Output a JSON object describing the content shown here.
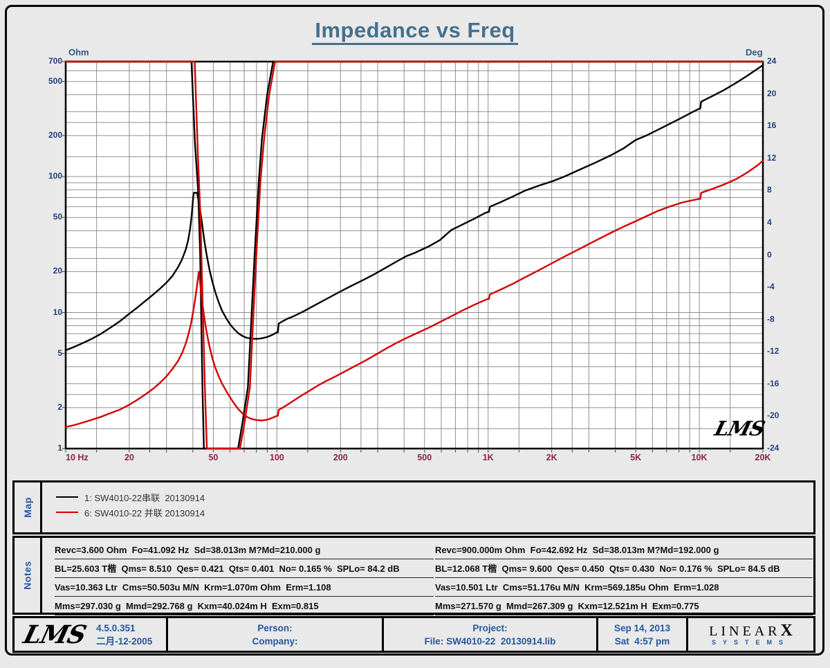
{
  "title": "Impedance vs Freq",
  "logos": {
    "lms": "LMS",
    "brand_line1": "LINEAR",
    "brand_x": "X",
    "brand_line2": "SYSTEMS"
  },
  "chart_data": {
    "type": "line",
    "title": "Impedance vs Freq",
    "grid": true,
    "x_axis": {
      "scale": "log",
      "min": 10,
      "max": 20000,
      "unit": "Hz",
      "ticks": [
        10,
        20,
        50,
        100,
        200,
        500,
        1000,
        2000,
        5000,
        10000,
        20000
      ],
      "tick_labels": [
        "10 Hz",
        "20",
        "50",
        "100",
        "200",
        "500",
        "1K",
        "2K",
        "5K",
        "10K",
        "20K"
      ]
    },
    "y_left": {
      "scale": "log",
      "min": 1,
      "max": 700,
      "unit": "Ohm",
      "tick_values": [
        700,
        500,
        200,
        100,
        50,
        20,
        10,
        5,
        2,
        1
      ]
    },
    "y_right": {
      "scale": "linear",
      "min": -24,
      "max": 24,
      "unit": "Deg",
      "tick_values": [
        24,
        20,
        16,
        12,
        8,
        4,
        0,
        -4,
        -8,
        -12,
        -16,
        -20,
        -24
      ]
    },
    "series": [
      {
        "name": "1: SW4010-22串联  20130914 phase",
        "axis": "right",
        "color": "#000000",
        "kind": "phase",
        "points": [
          [
            10,
            40
          ],
          [
            37,
            40
          ],
          [
            39.4,
            24
          ],
          [
            40.9,
            14
          ],
          [
            42.4,
            7.8
          ],
          [
            43.3,
            0
          ],
          [
            44.4,
            -16.4
          ],
          [
            45.1,
            -24
          ],
          [
            46,
            -40
          ],
          [
            63.5,
            -40
          ],
          [
            65.5,
            -24
          ],
          [
            68.5,
            -21
          ],
          [
            72.9,
            -16.4
          ],
          [
            78.3,
            -0.3
          ],
          [
            82,
            9
          ],
          [
            85,
            14.5
          ],
          [
            90,
            20
          ],
          [
            96,
            24
          ],
          [
            99,
            40
          ],
          [
            20000,
            40
          ]
        ]
      },
      {
        "name": "1: SW4010-22串联  20130914",
        "axis": "left",
        "color": "#000000",
        "kind": "impedance",
        "points": [
          [
            10,
            5.28
          ],
          [
            11,
            5.6
          ],
          [
            12,
            5.95
          ],
          [
            13,
            6.3
          ],
          [
            14.5,
            6.9
          ],
          [
            16,
            7.6
          ],
          [
            18,
            8.6
          ],
          [
            20,
            9.8
          ],
          [
            22,
            11
          ],
          [
            24,
            12.3
          ],
          [
            26,
            13.6
          ],
          [
            28,
            15
          ],
          [
            30,
            16.6
          ],
          [
            32,
            18.6
          ],
          [
            34,
            21.5
          ],
          [
            35.5,
            24.5
          ],
          [
            37,
            29
          ],
          [
            38,
            34
          ],
          [
            38.8,
            41
          ],
          [
            39.4,
            50
          ],
          [
            39.8,
            60
          ],
          [
            40.1,
            70
          ],
          [
            40.4,
            76
          ],
          [
            41.9,
            76
          ],
          [
            42.6,
            66
          ],
          [
            43.4,
            55
          ],
          [
            44.3,
            44
          ],
          [
            45.3,
            34
          ],
          [
            46.5,
            26.5
          ],
          [
            48,
            20.5
          ],
          [
            49.5,
            16.8
          ],
          [
            51,
            14.2
          ],
          [
            53,
            11.9
          ],
          [
            55,
            10.3
          ],
          [
            57.5,
            9.1
          ],
          [
            60,
            8.2
          ],
          [
            63,
            7.5
          ],
          [
            66,
            7
          ],
          [
            69,
            6.7
          ],
          [
            72,
            6.52
          ],
          [
            76,
            6.43
          ],
          [
            80,
            6.4
          ],
          [
            84,
            6.45
          ],
          [
            88,
            6.55
          ],
          [
            92,
            6.7
          ],
          [
            96,
            6.9
          ],
          [
            100,
            7.15
          ],
          [
            101,
            7.15
          ],
          [
            102,
            8.3
          ],
          [
            106,
            8.6
          ],
          [
            112,
            9
          ],
          [
            120,
            9.4
          ],
          [
            132,
            10.1
          ],
          [
            146,
            11
          ],
          [
            162,
            12
          ],
          [
            180,
            13.1
          ],
          [
            200,
            14.3
          ],
          [
            225,
            15.7
          ],
          [
            255,
            17.3
          ],
          [
            290,
            19.2
          ],
          [
            330,
            21.5
          ],
          [
            370,
            23.8
          ],
          [
            410,
            26
          ],
          [
            450,
            27.5
          ],
          [
            520,
            30.5
          ],
          [
            590,
            34
          ],
          [
            670,
            40.5
          ],
          [
            760,
            44.5
          ],
          [
            860,
            49
          ],
          [
            970,
            54
          ],
          [
            1000,
            55
          ],
          [
            1010,
            55
          ],
          [
            1020,
            60
          ],
          [
            1150,
            65
          ],
          [
            1300,
            71
          ],
          [
            1500,
            79
          ],
          [
            1750,
            86
          ],
          [
            2000,
            92
          ],
          [
            2300,
            100
          ],
          [
            2700,
            112
          ],
          [
            3200,
            126
          ],
          [
            3800,
            143
          ],
          [
            4400,
            162
          ],
          [
            5000,
            186
          ],
          [
            5600,
            200
          ],
          [
            6300,
            219
          ],
          [
            7200,
            243
          ],
          [
            8300,
            272
          ],
          [
            9200,
            296
          ],
          [
            10000,
            316
          ],
          [
            10100,
            316
          ],
          [
            10200,
            355
          ],
          [
            11500,
            390
          ],
          [
            13000,
            430
          ],
          [
            15000,
            490
          ],
          [
            17000,
            555
          ],
          [
            19000,
            625
          ],
          [
            20000,
            660
          ]
        ]
      },
      {
        "name": "6: SW4010-22 并联 20130914 phase",
        "axis": "right",
        "color": "#d40000",
        "kind": "phase",
        "points": [
          [
            10,
            40
          ],
          [
            38.3,
            40
          ],
          [
            40.8,
            24
          ],
          [
            42.3,
            12
          ],
          [
            43.4,
            5
          ],
          [
            44.6,
            -7
          ],
          [
            45.6,
            -16.4
          ],
          [
            46.6,
            -24
          ],
          [
            47.6,
            -40
          ],
          [
            64.8,
            -40
          ],
          [
            66.8,
            -24
          ],
          [
            70,
            -21
          ],
          [
            74.5,
            -16.4
          ],
          [
            79.8,
            -0.3
          ],
          [
            83.5,
            9
          ],
          [
            87,
            14.5
          ],
          [
            92,
            20
          ],
          [
            98,
            24
          ],
          [
            101,
            40
          ],
          [
            20000,
            40
          ]
        ]
      },
      {
        "name": "6: SW4010-22 并联 20130914",
        "axis": "left",
        "color": "#d40000",
        "kind": "impedance",
        "points": [
          [
            10,
            1.44
          ],
          [
            11,
            1.49
          ],
          [
            12,
            1.55
          ],
          [
            13,
            1.61
          ],
          [
            14.5,
            1.7
          ],
          [
            16,
            1.8
          ],
          [
            18,
            1.93
          ],
          [
            20,
            2.1
          ],
          [
            22,
            2.3
          ],
          [
            24,
            2.52
          ],
          [
            26,
            2.76
          ],
          [
            28,
            3.05
          ],
          [
            30,
            3.4
          ],
          [
            32,
            3.85
          ],
          [
            34,
            4.4
          ],
          [
            35.5,
            5
          ],
          [
            37,
            5.9
          ],
          [
            38,
            6.8
          ],
          [
            39,
            8
          ],
          [
            40,
            9.8
          ],
          [
            41,
            12.5
          ],
          [
            41.8,
            15.5
          ],
          [
            42.3,
            18
          ],
          [
            42.7,
            20
          ],
          [
            43.2,
            17
          ],
          [
            43.8,
            13.8
          ],
          [
            44.6,
            11
          ],
          [
            45.5,
            8.8
          ],
          [
            46.6,
            7
          ],
          [
            48,
            5.6
          ],
          [
            49.5,
            4.6
          ],
          [
            51,
            3.95
          ],
          [
            53,
            3.4
          ],
          [
            55,
            3
          ],
          [
            57.5,
            2.65
          ],
          [
            60,
            2.38
          ],
          [
            63,
            2.12
          ],
          [
            66,
            1.93
          ],
          [
            69,
            1.8
          ],
          [
            72,
            1.71
          ],
          [
            76,
            1.65
          ],
          [
            80,
            1.62
          ],
          [
            85,
            1.61
          ],
          [
            90,
            1.63
          ],
          [
            95,
            1.68
          ],
          [
            100,
            1.74
          ],
          [
            101,
            1.74
          ],
          [
            102,
            1.93
          ],
          [
            106,
            1.99
          ],
          [
            112,
            2.1
          ],
          [
            120,
            2.25
          ],
          [
            130,
            2.44
          ],
          [
            142,
            2.65
          ],
          [
            156,
            2.9
          ],
          [
            172,
            3.15
          ],
          [
            190,
            3.4
          ],
          [
            210,
            3.7
          ],
          [
            235,
            4.05
          ],
          [
            260,
            4.4
          ],
          [
            290,
            4.85
          ],
          [
            330,
            5.45
          ],
          [
            370,
            6
          ],
          [
            410,
            6.5
          ],
          [
            450,
            6.95
          ],
          [
            520,
            7.7
          ],
          [
            590,
            8.5
          ],
          [
            670,
            9.4
          ],
          [
            760,
            10.4
          ],
          [
            860,
            11.4
          ],
          [
            970,
            12.4
          ],
          [
            1000,
            12.6
          ],
          [
            1010,
            12.6
          ],
          [
            1020,
            13.6
          ],
          [
            1150,
            14.8
          ],
          [
            1300,
            16.2
          ],
          [
            1500,
            18.2
          ],
          [
            1750,
            20.6
          ],
          [
            2000,
            23
          ],
          [
            2300,
            25.8
          ],
          [
            2700,
            29.3
          ],
          [
            3200,
            33.6
          ],
          [
            3800,
            38.5
          ],
          [
            4400,
            43
          ],
          [
            5000,
            47
          ],
          [
            5600,
            51
          ],
          [
            6300,
            55.5
          ],
          [
            7200,
            60
          ],
          [
            8300,
            64.5
          ],
          [
            9200,
            66.8
          ],
          [
            10000,
            68.5
          ],
          [
            10100,
            68.5
          ],
          [
            10200,
            76
          ],
          [
            11500,
            81
          ],
          [
            13000,
            87
          ],
          [
            15000,
            96
          ],
          [
            17000,
            108
          ],
          [
            19000,
            122
          ],
          [
            20000,
            131
          ]
        ]
      }
    ]
  },
  "map": {
    "label": "Map",
    "legend": [
      {
        "color": "#000000",
        "label": "1: SW4010-22串联  20130914"
      },
      {
        "color": "#d40000",
        "label": "6: SW4010-22 并联 20130914"
      }
    ]
  },
  "notes": {
    "label": "Notes",
    "left": [
      "Revc=3.600 Ohm  Fo=41.092 Hz  Sd=38.013m M?Md=210.000 g",
      "BL=25.603 T楷  Qms= 8.510  Qes= 0.421  Qts= 0.401  No= 0.165 %  SPLo= 84.2 dB",
      "Vas=10.363 Ltr  Cms=50.503u M/N  Krm=1.070m Ohm  Erm=1.108",
      "Mms=297.030 g  Mmd=292.768 g  Kxm=40.024m H  Exm=0.815"
    ],
    "right": [
      "Revc=900.000m Ohm  Fo=42.692 Hz  Sd=38.013m M?Md=192.000 g",
      "BL=12.068 T楷  Qms= 9.600  Qes= 0.450  Qts= 0.430  No= 0.176 %  SPLo= 84.5 dB",
      "Vas=10.501 Ltr  Cms=51.176u M/N  Krm=569.185u Ohm  Erm=1.028",
      "Mms=271.570 g  Mmd=267.309 g  Kxm=12.521m H  Exm=0.775"
    ]
  },
  "footer": {
    "version": "4.5.0.351",
    "version_date": "二月-12-2005",
    "person_label": "Person:",
    "company_label": "Company:",
    "project_label": "Project:",
    "file_label": "File: SW4010-22  20130914.lib",
    "date": "Sep 14, 2013",
    "time": "Sat  4:57 pm"
  }
}
